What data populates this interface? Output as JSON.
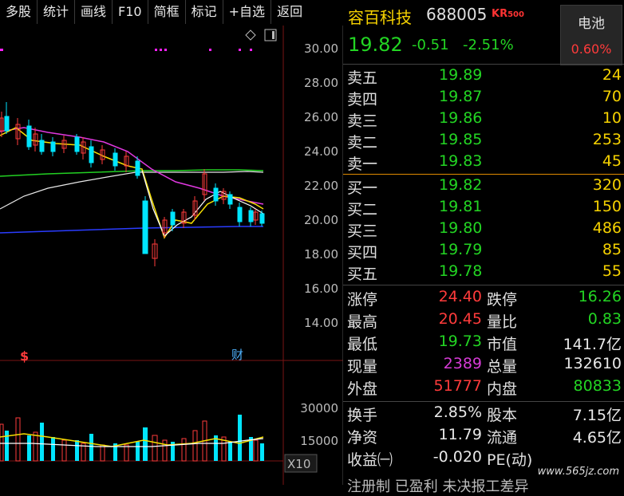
{
  "toolbar": {
    "buttons": [
      "多股",
      "统计",
      "画线",
      "F10",
      "简框",
      "标记",
      "+自选",
      "返回"
    ]
  },
  "chart": {
    "price_ticks": [
      "30.00",
      "28.00",
      "26.00",
      "24.00",
      "22.00",
      "20.00",
      "18.00",
      "16.00",
      "14.00"
    ],
    "vol_ticks": [
      "30000",
      "15000"
    ],
    "vol_unit": "X10",
    "marker_s": "$",
    "marker_cai": "财"
  },
  "stock": {
    "name": "容百科技",
    "code": "688005",
    "badge_kr": "KR",
    "badge_num": "500",
    "price": "19.82",
    "change": "-0.51",
    "change_pct": "-2.51%"
  },
  "sector": {
    "name": "电池",
    "change": "0.60%"
  },
  "order_book": {
    "asks": [
      {
        "label": "卖五",
        "price": "19.89",
        "vol": "24"
      },
      {
        "label": "卖四",
        "price": "19.87",
        "vol": "70"
      },
      {
        "label": "卖三",
        "price": "19.86",
        "vol": "10"
      },
      {
        "label": "卖二",
        "price": "19.85",
        "vol": "253"
      },
      {
        "label": "卖一",
        "price": "19.83",
        "vol": "45"
      }
    ],
    "bids": [
      {
        "label": "买一",
        "price": "19.82",
        "vol": "320"
      },
      {
        "label": "买二",
        "price": "19.81",
        "vol": "150"
      },
      {
        "label": "买三",
        "price": "19.80",
        "vol": "486"
      },
      {
        "label": "买四",
        "price": "19.79",
        "vol": "85"
      },
      {
        "label": "买五",
        "price": "19.78",
        "vol": "55"
      }
    ]
  },
  "stats": {
    "limit_up_label": "涨停",
    "limit_up": "24.40",
    "limit_down_label": "跌停",
    "limit_down": "16.26",
    "high_label": "最高",
    "high": "20.45",
    "vol_ratio_label": "量比",
    "vol_ratio": "0.83",
    "low_label": "最低",
    "low": "19.73",
    "mkt_cap_label": "市值",
    "mkt_cap": "141.7亿",
    "cur_vol_label": "现量",
    "cur_vol": "2389",
    "total_vol_label": "总量",
    "total_vol": "132610",
    "outer_label": "外盘",
    "outer": "51777",
    "inner_label": "内盘",
    "inner": "80833",
    "turnover_label": "换手",
    "turnover": "2.85%",
    "equity_label": "股本",
    "equity": "7.15亿",
    "nav_label": "净资",
    "nav": "11.79",
    "float_label": "流通",
    "float": "4.65亿",
    "eps_label": "收益㈠",
    "eps": "-0.020",
    "pe_label": "PE(动)",
    "pe": ""
  },
  "bottom_text": "注册制 已盈利 未决报工差异",
  "watermark": "www.565jz.com",
  "colors": {
    "up": "#ff3b3b",
    "down": "#23d523",
    "accent": "#f6d200",
    "bg": "#000000"
  }
}
